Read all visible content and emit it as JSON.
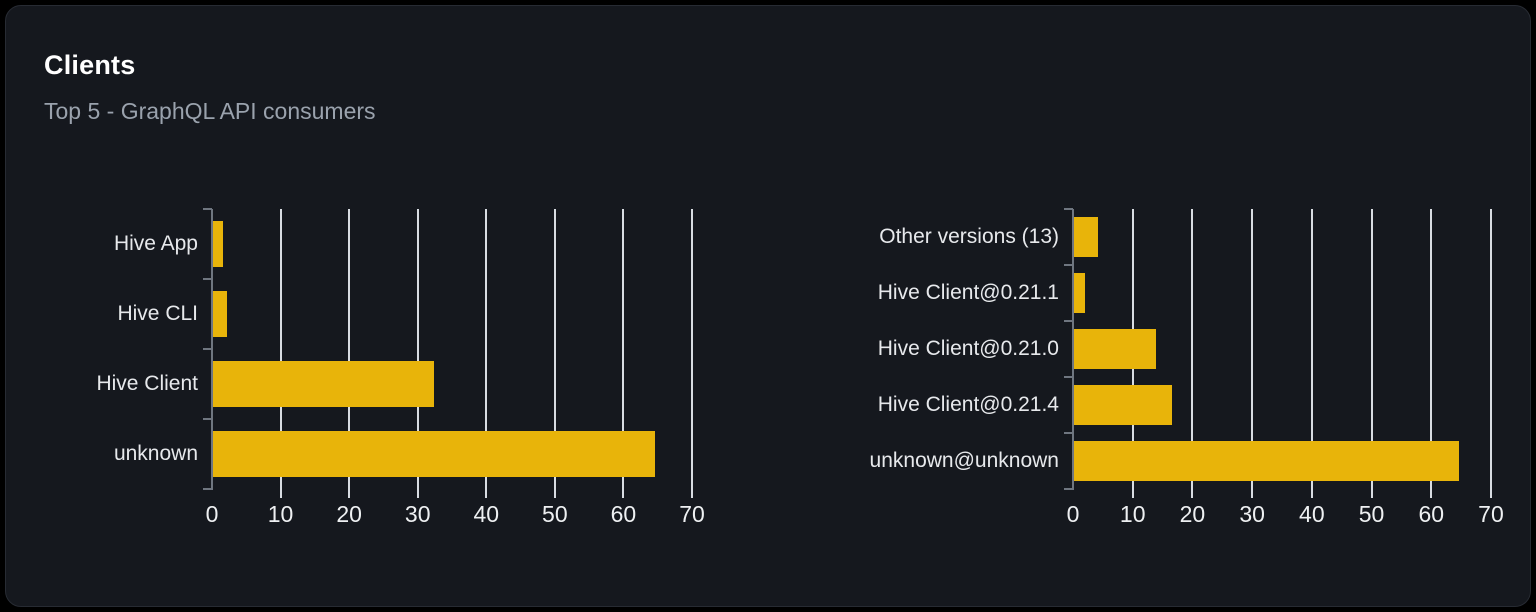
{
  "card": {
    "title": "Clients",
    "subtitle": "Top 5 - GraphQL API consumers"
  },
  "colors": {
    "page_bg": "#000000",
    "card_bg": "#15181e",
    "card_border": "#272b33",
    "title": "#ffffff",
    "subtitle": "#9aa2ad",
    "bar": "#e8b40a",
    "gridline": "#d8dce2",
    "axis": "#6f7680",
    "category_label": "#e7e9ec",
    "tick_label": "#eef0f2"
  },
  "chart_data": [
    {
      "type": "bar",
      "orientation": "horizontal",
      "name": "top-clients-chart",
      "categories": [
        "Hive App",
        "Hive CLI",
        "Hive Client",
        "unknown"
      ],
      "values": [
        1.4,
        2.1,
        32.2,
        64.4
      ],
      "xlim": [
        0,
        70
      ],
      "xticks": [
        0,
        10,
        20,
        30,
        40,
        50,
        60,
        70
      ],
      "grid": true,
      "legend": false,
      "title": "",
      "xlabel": "",
      "ylabel": ""
    },
    {
      "type": "bar",
      "orientation": "horizontal",
      "name": "top-client-versions-chart",
      "categories": [
        "Other versions (13)",
        "Hive Client@0.21.1",
        "Hive Client@0.21.0",
        "Hive Client@0.21.4",
        "unknown@unknown"
      ],
      "values": [
        4.1,
        1.9,
        13.8,
        16.4,
        64.4
      ],
      "xlim": [
        0,
        70
      ],
      "xticks": [
        0,
        10,
        20,
        30,
        40,
        50,
        60,
        70
      ],
      "grid": true,
      "legend": false,
      "title": "",
      "xlabel": "",
      "ylabel": ""
    }
  ]
}
